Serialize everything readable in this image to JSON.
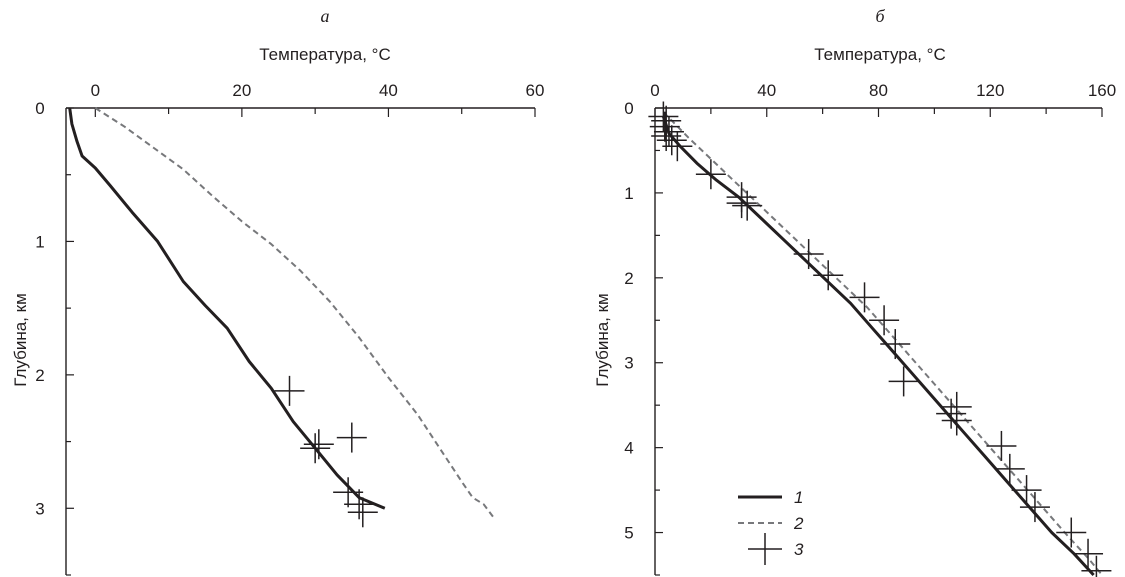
{
  "chart_data": [
    {
      "type": "line",
      "panel_label": "а",
      "xlabel": "Температура, °C",
      "ylabel": "Глубина, км",
      "xlim": [
        -4,
        60
      ],
      "ylim": [
        0,
        3.5
      ],
      "x_axis_position": "top",
      "y_inverted": true,
      "grid": false,
      "xticks": [
        0,
        20,
        40,
        60
      ],
      "yticks": [
        0,
        1,
        2,
        3
      ],
      "series": [
        {
          "legend_key": "1",
          "style": "solid",
          "color": "#231f20",
          "points": [
            [
              -3.5,
              0
            ],
            [
              -3.2,
              0.12
            ],
            [
              -2.5,
              0.25
            ],
            [
              -1.8,
              0.36
            ],
            [
              0,
              0.45
            ],
            [
              2,
              0.58
            ],
            [
              5,
              0.78
            ],
            [
              8.5,
              1.0
            ],
            [
              12,
              1.3
            ],
            [
              15,
              1.48
            ],
            [
              18,
              1.65
            ],
            [
              21,
              1.9
            ],
            [
              24,
              2.1
            ],
            [
              27,
              2.35
            ],
            [
              30,
              2.55
            ],
            [
              33,
              2.75
            ],
            [
              36,
              2.92
            ],
            [
              39.5,
              3.0
            ]
          ]
        },
        {
          "legend_key": "2",
          "style": "dashed",
          "color": "#77787b",
          "points": [
            [
              0,
              0
            ],
            [
              4,
              0.14
            ],
            [
              8,
              0.3
            ],
            [
              12,
              0.46
            ],
            [
              16,
              0.66
            ],
            [
              20,
              0.85
            ],
            [
              24,
              1.02
            ],
            [
              28,
              1.22
            ],
            [
              32,
              1.45
            ],
            [
              36,
              1.72
            ],
            [
              40,
              2.02
            ],
            [
              44,
              2.3
            ],
            [
              47,
              2.55
            ],
            [
              50,
              2.8
            ],
            [
              51.5,
              2.92
            ],
            [
              53,
              2.97
            ],
            [
              54.5,
              3.08
            ]
          ]
        },
        {
          "legend_key": "3",
          "style": "markers",
          "marker": "cross",
          "color": "#231f20",
          "points": [
            [
              26.5,
              2.12
            ],
            [
              30.5,
              2.52
            ],
            [
              30,
              2.55
            ],
            [
              35,
              2.47
            ],
            [
              34.5,
              2.88
            ],
            [
              36,
              2.97
            ],
            [
              36.5,
              3.03
            ]
          ]
        }
      ]
    },
    {
      "type": "line",
      "panel_label": "б",
      "xlabel": "Температура, °C",
      "ylabel": "Глубина, км",
      "xlim": [
        0,
        160
      ],
      "ylim": [
        0,
        5.5
      ],
      "x_axis_position": "top",
      "y_inverted": true,
      "grid": false,
      "xticks": [
        0,
        40,
        80,
        120,
        160
      ],
      "yticks": [
        1,
        2,
        3,
        4,
        5
      ],
      "legend_position": "bottom-left",
      "series": [
        {
          "name": "1",
          "style": "solid",
          "color": "#231f20",
          "points": [
            [
              3,
              0.1
            ],
            [
              5,
              0.3
            ],
            [
              9,
              0.45
            ],
            [
              15,
              0.65
            ],
            [
              22,
              0.85
            ],
            [
              30,
              1.05
            ],
            [
              38,
              1.3
            ],
            [
              46,
              1.55
            ],
            [
              54,
              1.8
            ],
            [
              62,
              2.05
            ],
            [
              70,
              2.3
            ],
            [
              78,
              2.6
            ],
            [
              86,
              2.9
            ],
            [
              94,
              3.2
            ],
            [
              102,
              3.5
            ],
            [
              110,
              3.8
            ],
            [
              118,
              4.1
            ],
            [
              126,
              4.4
            ],
            [
              134,
              4.7
            ],
            [
              142,
              5.0
            ],
            [
              150,
              5.25
            ],
            [
              157,
              5.5
            ]
          ]
        },
        {
          "name": "2",
          "style": "dashed",
          "color": "#77787b",
          "points": [
            [
              3,
              0.05
            ],
            [
              6,
              0.15
            ],
            [
              12,
              0.35
            ],
            [
              20,
              0.6
            ],
            [
              28,
              0.85
            ],
            [
              36,
              1.1
            ],
            [
              44,
              1.35
            ],
            [
              52,
              1.6
            ],
            [
              60,
              1.85
            ],
            [
              68,
              2.1
            ],
            [
              76,
              2.35
            ],
            [
              84,
              2.65
            ],
            [
              92,
              2.95
            ],
            [
              100,
              3.25
            ],
            [
              108,
              3.55
            ],
            [
              116,
              3.85
            ],
            [
              124,
              4.15
            ],
            [
              132,
              4.45
            ],
            [
              140,
              4.75
            ],
            [
              148,
              5.05
            ],
            [
              155,
              5.3
            ],
            [
              160,
              5.5
            ]
          ]
        },
        {
          "name": "3",
          "style": "markers",
          "marker": "cross",
          "color": "#231f20",
          "points": [
            [
              3,
              0.1
            ],
            [
              4,
              0.15
            ],
            [
              3.5,
              0.22
            ],
            [
              5,
              0.28
            ],
            [
              4,
              0.33
            ],
            [
              6,
              0.38
            ],
            [
              8,
              0.45
            ],
            [
              20,
              0.78
            ],
            [
              31,
              1.05
            ],
            [
              31,
              1.12
            ],
            [
              33,
              1.15
            ],
            [
              55,
              1.72
            ],
            [
              62,
              1.97
            ],
            [
              75,
              2.23
            ],
            [
              82,
              2.5
            ],
            [
              86,
              2.78
            ],
            [
              89,
              3.22
            ],
            [
              106,
              3.6
            ],
            [
              108,
              3.68
            ],
            [
              108,
              3.52
            ],
            [
              124,
              3.98
            ],
            [
              127,
              4.25
            ],
            [
              133,
              4.5
            ],
            [
              136,
              4.7
            ],
            [
              149,
              5.0
            ],
            [
              155,
              5.25
            ],
            [
              158,
              5.45
            ]
          ]
        }
      ]
    }
  ]
}
